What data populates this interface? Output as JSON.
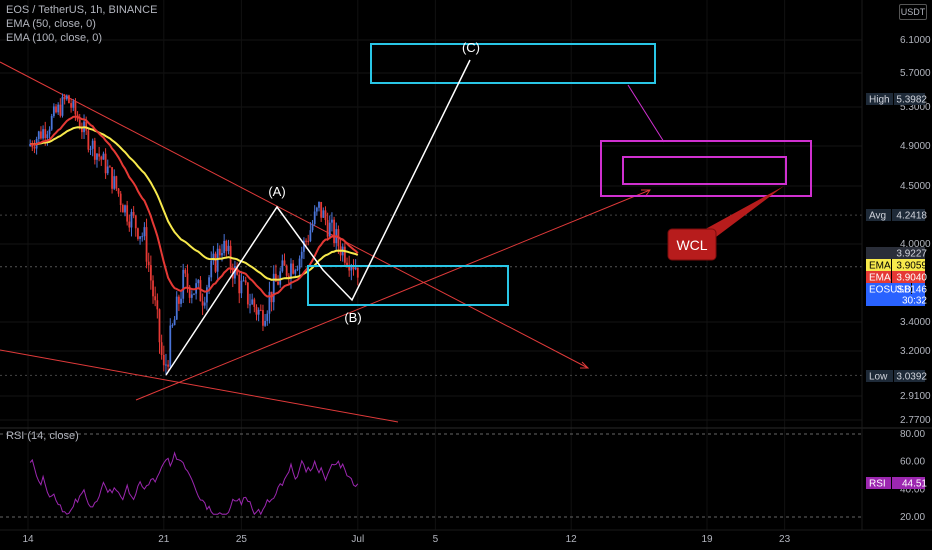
{
  "header": {
    "symbol_line": "EOS / TetherUS, 1h, BINANCE",
    "ema50_label": "EMA (50, close, 0)",
    "ema100_label": "EMA (100, close, 0)",
    "currency": "USDT",
    "rsi_label": "RSI (14, close)"
  },
  "colors": {
    "background": "#000000",
    "ema50": "#f7e94c",
    "ema100": "#e53935",
    "rsi": "#9c27b0",
    "box_cyan": "#29c6e6",
    "box_magenta": "#d030d0",
    "trendline": "#e03a3a",
    "wave": "#ffffff",
    "candle_up": "#4a74d8",
    "candle_down": "#e53935"
  },
  "chart_data": [
    {
      "type": "candlestick",
      "title": "EOS / TetherUS, 1h, BINANCE",
      "y_axis_ticks": [
        6.1,
        5.7,
        5.3,
        4.9,
        4.5,
        4.0,
        3.4,
        3.2,
        2.91,
        2.77
      ],
      "y_tick_labels": [
        "6.1000",
        "5.7000",
        "5.3000",
        "4.9000",
        "4.5000",
        "4.0000",
        "3.4000",
        "3.2000",
        "2.9100",
        "2.7700"
      ],
      "x_tick_labels": [
        "14",
        "21",
        "25",
        "Jul",
        "5",
        "12",
        "19",
        "23"
      ],
      "price_labels": [
        {
          "name": "High",
          "value": "5.3982"
        },
        {
          "name": "Avg",
          "value": "4.2418"
        },
        {
          "name": "",
          "value": "3.9227"
        },
        {
          "name": "EMA",
          "value": "3.9059"
        },
        {
          "name": "EMA",
          "value": "3.9040"
        },
        {
          "name": "EOSUSDT",
          "value": "3.8146"
        },
        {
          "name": "",
          "value": "30:32"
        },
        {
          "name": "Low",
          "value": "3.0392"
        }
      ],
      "price_path": [
        [
          "Jun 14",
          4.9
        ],
        [
          "Jun 15",
          5.1
        ],
        [
          "Jun 16",
          5.4
        ],
        [
          "Jun 17",
          5.0
        ],
        [
          "Jun 18",
          4.7
        ],
        [
          "Jun 19",
          4.3
        ],
        [
          "Jun 20",
          4.05
        ],
        [
          "Jun 21",
          3.05
        ],
        [
          "Jun 22",
          3.7
        ],
        [
          "Jun 23",
          3.6
        ],
        [
          "Jun 24",
          4.0
        ],
        [
          "Jun 25",
          3.65
        ],
        [
          "Jun 26",
          3.45
        ],
        [
          "Jun 27",
          3.75
        ],
        [
          "Jun 28",
          3.9
        ],
        [
          "Jun 29",
          4.3
        ],
        [
          "Jun 30",
          4.0
        ],
        [
          "Jul 1",
          3.81
        ]
      ],
      "wave_labels": [
        "(A)",
        "(B)",
        "(C)"
      ],
      "annotations": [
        "WCL"
      ]
    },
    {
      "type": "line",
      "title": "RSI (14, close)",
      "y_axis_ticks": [
        80,
        60,
        40,
        20
      ],
      "y_tick_labels": [
        "80.00",
        "60.00",
        "40.00",
        "20.00"
      ],
      "current": {
        "name": "RSI",
        "value": "44.51"
      },
      "levels": [
        80,
        20
      ]
    }
  ]
}
